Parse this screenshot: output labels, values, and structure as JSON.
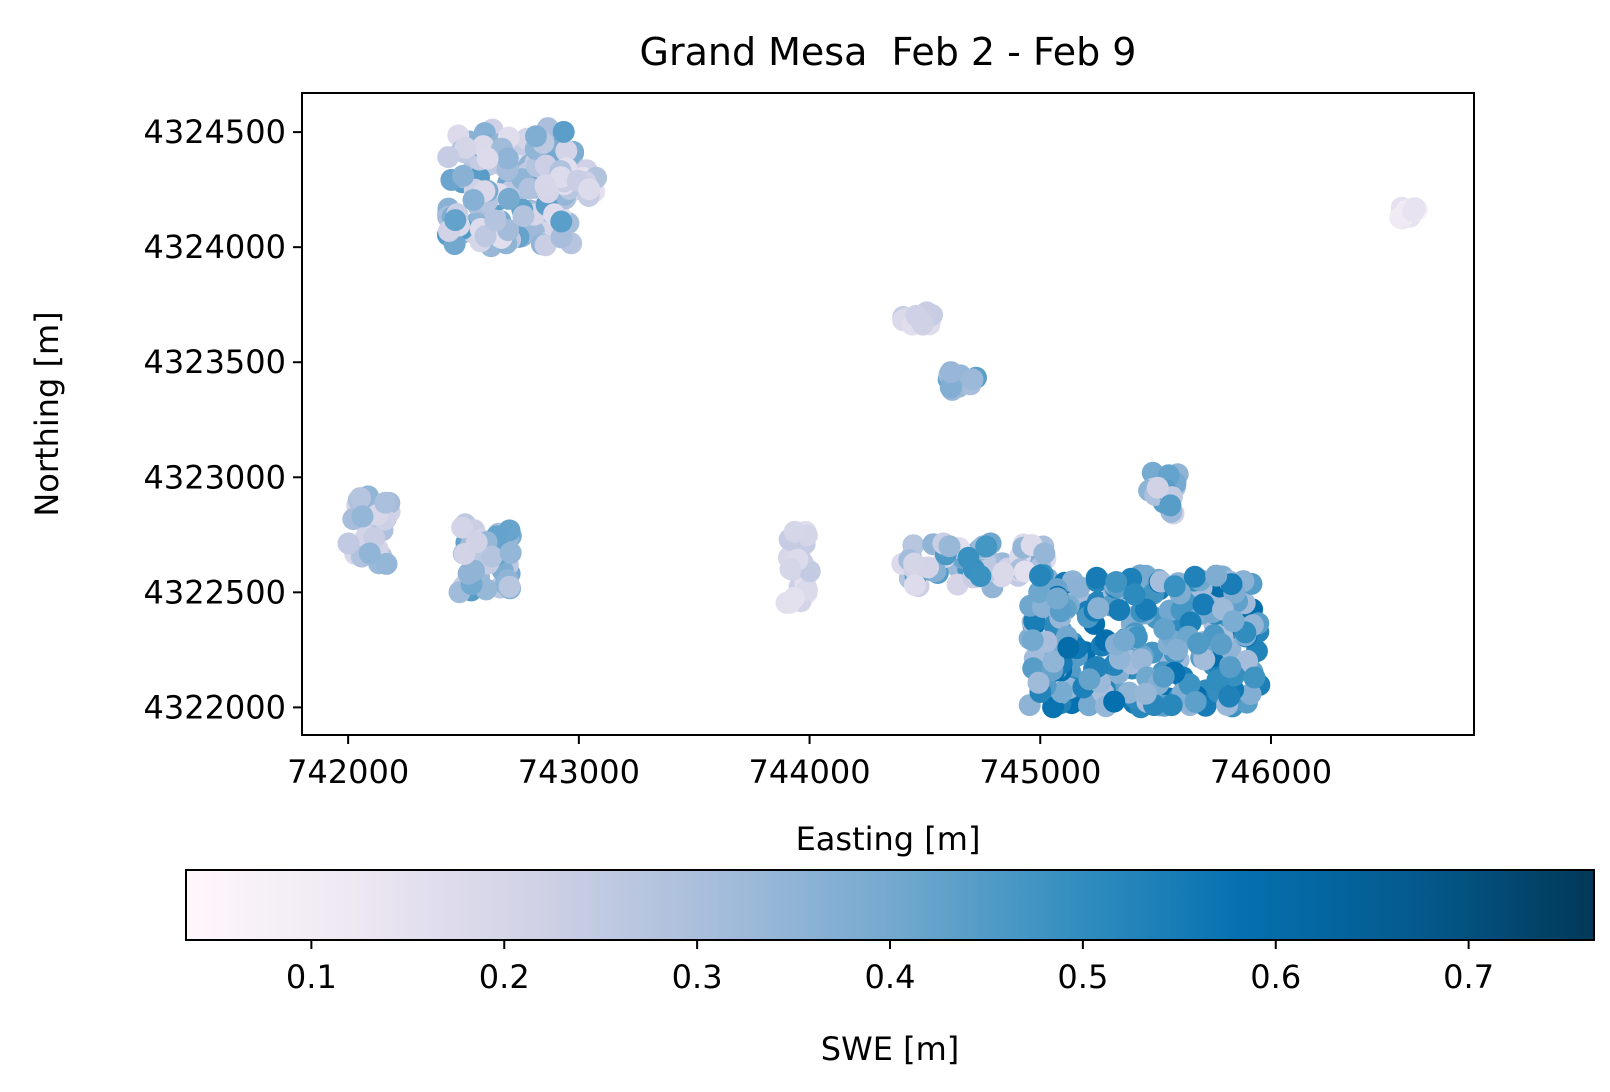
{
  "chart_data": {
    "type": "scatter",
    "title": "Grand Mesa  Feb 2 - Feb 9",
    "xlabel": "Easting [m]",
    "ylabel": "Northing [m]",
    "xlim": [
      741800,
      746880
    ],
    "ylim": [
      4321880,
      4324670
    ],
    "xticks": [
      742000,
      743000,
      744000,
      745000,
      746000
    ],
    "yticks": [
      4322000,
      4322500,
      4323000,
      4323500,
      4324000,
      4324500
    ],
    "grid": false,
    "colorbar": {
      "label": "SWE [m]",
      "orientation": "horizontal",
      "colormap": "PuBu",
      "range": [
        0.035,
        0.765
      ],
      "ticks": [
        0.1,
        0.2,
        0.3,
        0.4,
        0.5,
        0.6,
        0.7
      ],
      "colors": [
        "#fff7fb",
        "#ece7f2",
        "#d0d1e6",
        "#a6bddb",
        "#74a9cf",
        "#3690c0",
        "#0570b0",
        "#045a8d",
        "#023858"
      ]
    },
    "clusters": [
      {
        "x_range": [
          742430,
          742980
        ],
        "y_range": [
          4324000,
          4324520
        ],
        "swe_range": [
          0.15,
          0.45
        ]
      },
      {
        "x_range": [
          742850,
          743080
        ],
        "y_range": [
          4324220,
          4324360
        ],
        "swe_range": [
          0.15,
          0.3
        ]
      },
      {
        "x_range": [
          742000,
          742180
        ],
        "y_range": [
          4322620,
          4322920
        ],
        "swe_range": [
          0.15,
          0.35
        ]
      },
      {
        "x_range": [
          742480,
          742720
        ],
        "y_range": [
          4322500,
          4322820
        ],
        "swe_range": [
          0.2,
          0.45
        ]
      },
      {
        "x_range": [
          743900,
          744020
        ],
        "y_range": [
          4322450,
          4322800
        ],
        "swe_range": [
          0.15,
          0.25
        ]
      },
      {
        "x_range": [
          744400,
          744540
        ],
        "y_range": [
          4323650,
          4323720
        ],
        "swe_range": [
          0.15,
          0.25
        ]
      },
      {
        "x_range": [
          744600,
          744760
        ],
        "y_range": [
          4323360,
          4323470
        ],
        "swe_range": [
          0.3,
          0.45
        ]
      },
      {
        "x_range": [
          745450,
          745600
        ],
        "y_range": [
          4322840,
          4323020
        ],
        "swe_range": [
          0.2,
          0.45
        ]
      },
      {
        "x_range": [
          744400,
          745050
        ],
        "y_range": [
          4322520,
          4322720
        ],
        "swe_range": [
          0.15,
          0.5
        ]
      },
      {
        "x_range": [
          744950,
          745950
        ],
        "y_range": [
          4322000,
          4322580
        ],
        "swe_range": [
          0.3,
          0.6
        ]
      },
      {
        "x_range": [
          746560,
          746640
        ],
        "y_range": [
          4324120,
          4324180
        ],
        "swe_range": [
          0.08,
          0.15
        ]
      }
    ]
  }
}
